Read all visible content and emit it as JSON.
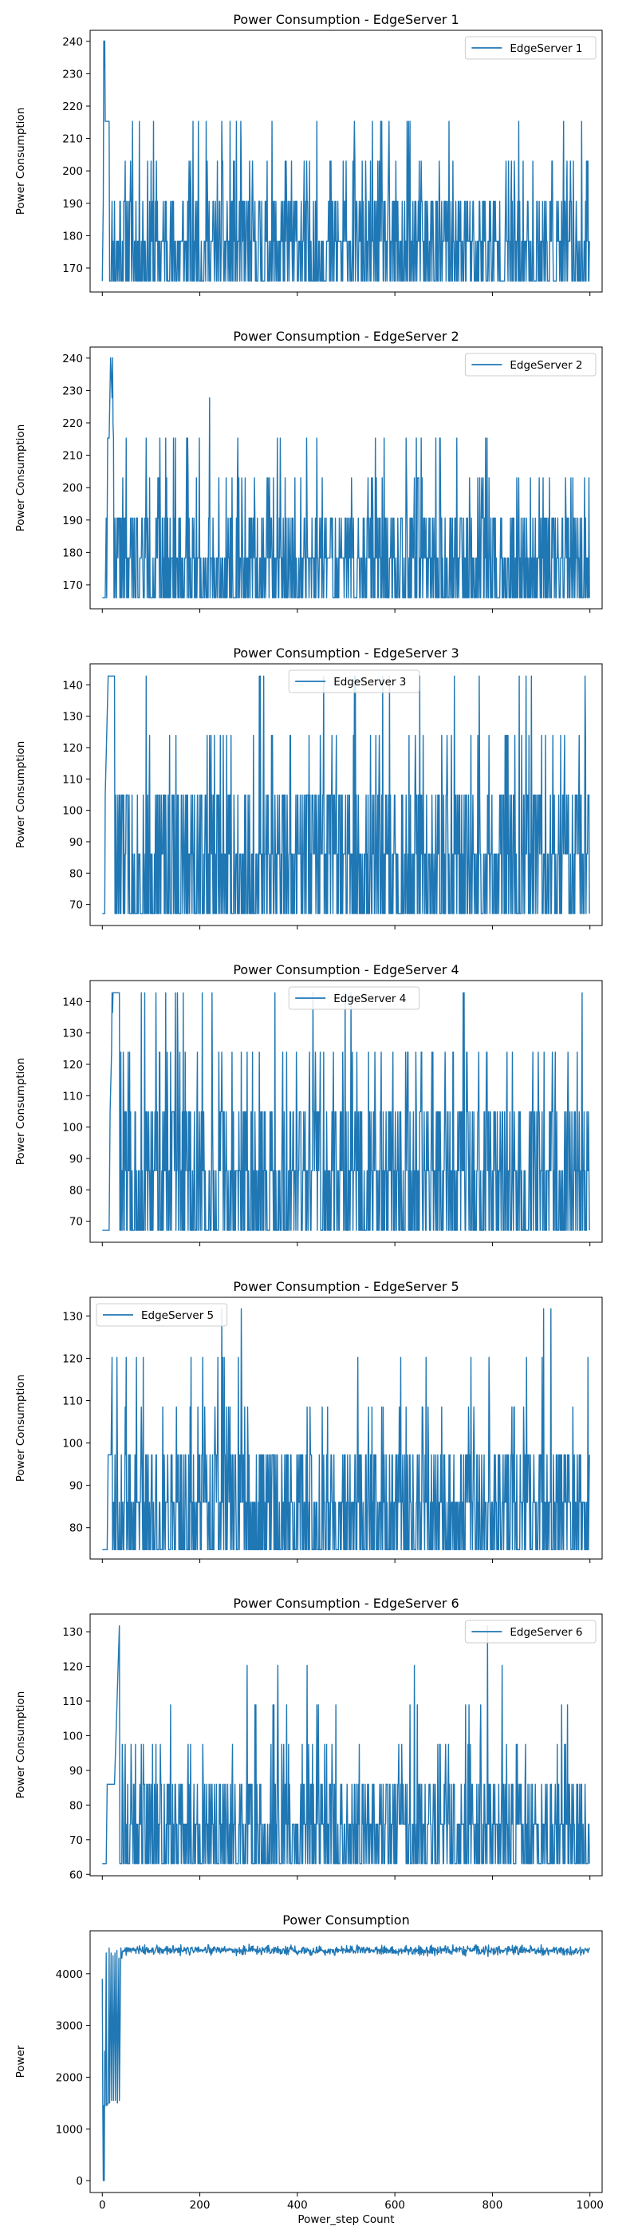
{
  "chart_data": [
    {
      "type": "line",
      "title": "Power Consumption - EdgeServer 1",
      "ylabel": "Power Consumption",
      "xlabel": "",
      "xlim": [
        -25,
        1025
      ],
      "ylim": [
        162.6,
        243.4
      ],
      "yticks": [
        170,
        180,
        190,
        200,
        210,
        220,
        230,
        240
      ],
      "xticks": [
        0,
        200,
        400,
        600,
        800,
        1000
      ],
      "xtick_labels_shown": false,
      "legend": "top-right",
      "levels": [
        166.0,
        178.3,
        190.6,
        203.0,
        215.3
      ],
      "spikes": [
        [
          3,
          240.1
        ],
        [
          5,
          240.1
        ],
        [
          62,
          215.3
        ],
        [
          105,
          215.3
        ],
        [
          213,
          215.3
        ],
        [
          628,
          215.3
        ]
      ],
      "series": [
        {
          "name": "EdgeServer 1",
          "color": "#1f77b4",
          "n": 1000,
          "seed": 11,
          "start": [
            [
              0,
              166.0
            ],
            [
              2,
              190.6
            ],
            [
              3,
              240.1
            ],
            [
              6,
              215.3
            ],
            [
              14,
              215.3
            ]
          ],
          "ramp": 14
        }
      ]
    },
    {
      "type": "line",
      "title": "Power Consumption - EdgeServer 2",
      "ylabel": "Power Consumption",
      "xlabel": "",
      "xlim": [
        -25,
        1025
      ],
      "ylim": [
        162.6,
        243.4
      ],
      "yticks": [
        170,
        180,
        190,
        200,
        210,
        220,
        230,
        240
      ],
      "xticks": [
        0,
        200,
        400,
        600,
        800,
        1000
      ],
      "xtick_labels_shown": false,
      "legend": "top-right",
      "levels": [
        166.0,
        178.3,
        190.6,
        203.0,
        215.3
      ],
      "spikes": [
        [
          17,
          240.1
        ],
        [
          21,
          240.1
        ],
        [
          220,
          227.7
        ],
        [
          90,
          215.3
        ],
        [
          130,
          215.3
        ],
        [
          150,
          215.3
        ],
        [
          175,
          215.3
        ],
        [
          692,
          215.3
        ],
        [
          786,
          215.3
        ],
        [
          789,
          215.3
        ]
      ],
      "series": [
        {
          "name": "EdgeServer 2",
          "color": "#1f77b4",
          "n": 1000,
          "seed": 22,
          "start": [
            [
              0,
              166.0
            ],
            [
              6,
              166.0
            ],
            [
              8,
              190.6
            ],
            [
              9,
              166.0
            ],
            [
              11,
              215.3
            ],
            [
              14,
              215.3
            ],
            [
              17,
              240.1
            ],
            [
              23,
              215.3
            ]
          ],
          "ramp": 26
        }
      ]
    },
    {
      "type": "line",
      "title": "Power Consumption - EdgeServer 3",
      "ylabel": "Power Consumption",
      "xlabel": "",
      "xlim": [
        -25,
        1025
      ],
      "ylim": [
        63.3,
        146.7
      ],
      "yticks": [
        70,
        80,
        90,
        100,
        110,
        120,
        130,
        140
      ],
      "xticks": [
        0,
        200,
        400,
        600,
        800,
        1000
      ],
      "xtick_labels_shown": false,
      "legend": "top-center",
      "levels": [
        67.1,
        86.1,
        104.9,
        123.9,
        142.8
      ],
      "spikes": [
        [
          14,
          142.8
        ],
        [
          20,
          142.8
        ],
        [
          25,
          142.8
        ],
        [
          880,
          142.8
        ],
        [
          990,
          142.8
        ]
      ],
      "series": [
        {
          "name": "EdgeServer 3",
          "color": "#1f77b4",
          "n": 1000,
          "seed": 33,
          "start": [
            [
              0,
              67.1
            ],
            [
              5,
              67.1
            ],
            [
              6,
              104.9
            ],
            [
              12,
              142.8
            ],
            [
              24,
              142.8
            ]
          ],
          "ramp": 26
        }
      ]
    },
    {
      "type": "line",
      "title": "Power Consumption - EdgeServer 4",
      "ylabel": "Power Consumption",
      "xlabel": "",
      "xlim": [
        -25,
        1025
      ],
      "ylim": [
        63.3,
        146.7
      ],
      "yticks": [
        70,
        80,
        90,
        100,
        110,
        120,
        130,
        140
      ],
      "xticks": [
        0,
        200,
        400,
        600,
        800,
        1000
      ],
      "xtick_labels_shown": false,
      "legend": "top-center",
      "levels": [
        67.1,
        86.1,
        104.9,
        123.9,
        142.8
      ],
      "spikes": [
        [
          20,
          142.8
        ],
        [
          28,
          142.8
        ],
        [
          80,
          142.8
        ],
        [
          110,
          142.8
        ],
        [
          130,
          142.8
        ],
        [
          150,
          142.8
        ]
      ],
      "series": [
        {
          "name": "EdgeServer 4",
          "color": "#1f77b4",
          "n": 1000,
          "seed": 44,
          "start": [
            [
              0,
              67.1
            ],
            [
              14,
              67.1
            ],
            [
              16,
              104.9
            ],
            [
              22,
              142.8
            ],
            [
              35,
              142.8
            ]
          ],
          "ramp": 36
        }
      ]
    },
    {
      "type": "line",
      "title": "Power Consumption - EdgeServer 5",
      "ylabel": "Power Consumption",
      "xlabel": "",
      "xlim": [
        -25,
        1025
      ],
      "ylim": [
        72.6,
        134.4
      ],
      "yticks": [
        80,
        90,
        100,
        110,
        120,
        130
      ],
      "xticks": [
        0,
        200,
        400,
        600,
        800,
        1000
      ],
      "xtick_labels_shown": false,
      "legend": "top-left",
      "levels": [
        74.8,
        86.0,
        97.2,
        108.5,
        120.2
      ],
      "spikes": [
        [
          245,
          131.7
        ],
        [
          285,
          131.7
        ],
        [
          905,
          131.7
        ],
        [
          920,
          131.7
        ],
        [
          20,
          120.2
        ],
        [
          30,
          120.2
        ]
      ],
      "series": [
        {
          "name": "EdgeServer 5",
          "color": "#1f77b4",
          "n": 1000,
          "seed": 55,
          "start": [
            [
              0,
              74.8
            ],
            [
              10,
              74.8
            ],
            [
              12,
              97.2
            ],
            [
              18,
              97.2
            ],
            [
              20,
              120.2
            ]
          ],
          "ramp": 30
        }
      ]
    },
    {
      "type": "line",
      "title": "Power Consumption - EdgeServer 6",
      "ylabel": "Power Consumption",
      "xlabel": "",
      "xlim": [
        -25,
        1025
      ],
      "ylim": [
        59.6,
        135.1
      ],
      "yticks": [
        60,
        70,
        80,
        90,
        100,
        110,
        120,
        130
      ],
      "xticks": [
        0,
        200,
        400,
        600,
        800,
        1000
      ],
      "xtick_labels_shown": false,
      "legend": "top-right",
      "levels": [
        63.1,
        74.5,
        86.0,
        97.5,
        108.9,
        120.3
      ],
      "spikes": [
        [
          35,
          131.7
        ],
        [
          790,
          131.7
        ],
        [
          297,
          120.3
        ],
        [
          360,
          120.3
        ],
        [
          420,
          120.3
        ],
        [
          640,
          120.3
        ],
        [
          820,
          120.3
        ]
      ],
      "series": [
        {
          "name": "EdgeServer 6",
          "color": "#1f77b4",
          "n": 1000,
          "seed": 66,
          "start": [
            [
              0,
              63.1
            ],
            [
              8,
              63.1
            ],
            [
              10,
              86.0
            ],
            [
              25,
              86.0
            ],
            [
              30,
              108.9
            ],
            [
              35,
              131.7
            ]
          ],
          "ramp": 40
        }
      ]
    },
    {
      "type": "line",
      "title": "Power Consumption",
      "ylabel": "Power",
      "xlabel": "Power_step Count",
      "xlim": [
        -25,
        1025
      ],
      "ylim": [
        -230,
        4830
      ],
      "yticks": [
        0,
        1000,
        2000,
        3000,
        4000
      ],
      "xticks": [
        0,
        200,
        400,
        600,
        800,
        1000
      ],
      "xtick_labels_shown": true,
      "legend": "none",
      "series": [
        {
          "name": "",
          "color": "#1f77b4",
          "n": 1000,
          "seed": 77,
          "start": [
            [
              0,
              3900
            ],
            [
              1,
              1400
            ],
            [
              2,
              0
            ],
            [
              3,
              1450
            ],
            [
              4,
              0
            ],
            [
              5,
              2500
            ],
            [
              6,
              1450
            ],
            [
              8,
              4400
            ],
            [
              9,
              1450
            ],
            [
              12,
              1500
            ],
            [
              14,
              4500
            ],
            [
              15,
              1500
            ],
            [
              18,
              4400
            ],
            [
              19,
              1550
            ],
            [
              22,
              4350
            ],
            [
              23,
              1550
            ],
            [
              26,
              4400
            ],
            [
              27,
              1550
            ],
            [
              30,
              4450
            ],
            [
              31,
              1500
            ],
            [
              34,
              4300
            ],
            [
              35,
              1550
            ],
            [
              38,
              4500
            ],
            [
              40,
              4300
            ]
          ],
          "steady_mean": 4450,
          "steady_noise": 90
        }
      ]
    }
  ]
}
